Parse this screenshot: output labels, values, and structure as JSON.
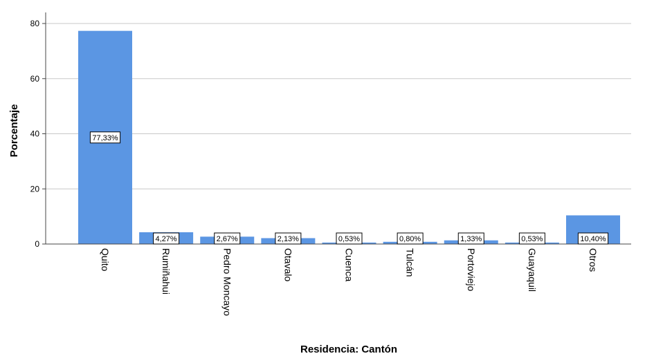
{
  "chart_data": {
    "type": "bar",
    "title": "",
    "xlabel": "Residencia: Cantón",
    "ylabel": "Porcentaje",
    "ylim": [
      0,
      84
    ],
    "yticks": [
      0,
      20,
      40,
      60,
      80
    ],
    "grid": true,
    "bar_color": "#5b96e3",
    "categories": [
      "Quito",
      "Rumiñahui",
      "Pedro Moncayo",
      "Otavalo",
      "Cuenca",
      "Tulcán",
      "Portoviejo",
      "Guayaquil",
      "Otros"
    ],
    "values": [
      77.33,
      4.27,
      2.67,
      2.13,
      0.53,
      0.8,
      1.33,
      0.53,
      10.4
    ],
    "data_labels": [
      "77,33%",
      "4,27%",
      "2,67%",
      "2,13%",
      "0,53%",
      "0,80%",
      "1,33%",
      "0,53%",
      "10,40%"
    ]
  }
}
